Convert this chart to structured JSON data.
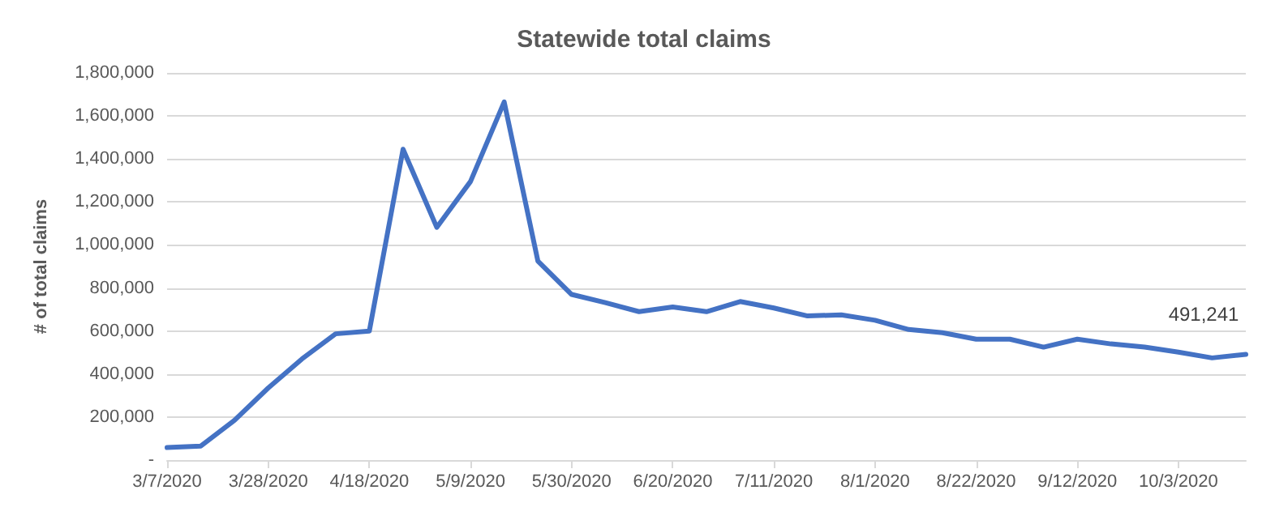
{
  "chart_data": {
    "type": "line",
    "title": "Statewide total claims",
    "ylabel": "# of total claims",
    "x": [
      "2020-03-07",
      "2020-03-14",
      "2020-03-21",
      "2020-03-28",
      "2020-04-04",
      "2020-04-11",
      "2020-04-18",
      "2020-04-25",
      "2020-05-02",
      "2020-05-09",
      "2020-05-16",
      "2020-05-23",
      "2020-05-30",
      "2020-06-06",
      "2020-06-13",
      "2020-06-20",
      "2020-06-27",
      "2020-07-04",
      "2020-07-11",
      "2020-07-18",
      "2020-07-25",
      "2020-08-01",
      "2020-08-08",
      "2020-08-15",
      "2020-08-22",
      "2020-08-29",
      "2020-09-05",
      "2020-09-12",
      "2020-09-19",
      "2020-09-26",
      "2020-10-03",
      "2020-10-10",
      "2020-10-17"
    ],
    "series": [
      {
        "color": "#4472c4",
        "values": [
          58000,
          65000,
          185000,
          335000,
          470000,
          587000,
          600000,
          1445000,
          1082000,
          1295000,
          1665000,
          925000,
          770000,
          732000,
          690000,
          712000,
          690000,
          737000,
          707000,
          670000,
          675000,
          650000,
          607000,
          592000,
          562000,
          562000,
          525000,
          562000,
          540000,
          525000,
          502000,
          475000,
          491241
        ],
        "value_labels": [
          null,
          null,
          null,
          null,
          null,
          null,
          null,
          null,
          null,
          null,
          null,
          null,
          null,
          null,
          null,
          null,
          null,
          null,
          null,
          null,
          null,
          null,
          null,
          null,
          null,
          null,
          null,
          null,
          null,
          null,
          null,
          null,
          "491,241"
        ]
      }
    ],
    "xlim": [
      "2020-03-07",
      "2020-10-17"
    ],
    "xticks": [
      {
        "value": "2020-03-07",
        "label": "3/7/2020"
      },
      {
        "value": "2020-03-28",
        "label": "3/28/2020"
      },
      {
        "value": "2020-04-18",
        "label": "4/18/2020"
      },
      {
        "value": "2020-05-09",
        "label": "5/9/2020"
      },
      {
        "value": "2020-05-30",
        "label": "5/30/2020"
      },
      {
        "value": "2020-06-20",
        "label": "6/20/2020"
      },
      {
        "value": "2020-07-11",
        "label": "7/11/2020"
      },
      {
        "value": "2020-08-01",
        "label": "8/1/2020"
      },
      {
        "value": "2020-08-22",
        "label": "8/22/2020"
      },
      {
        "value": "2020-09-12",
        "label": "9/12/2020"
      },
      {
        "value": "2020-10-03",
        "label": "10/3/2020"
      }
    ],
    "ylim": [
      0,
      1800000
    ],
    "yticks": [
      {
        "value": 0,
        "label": "-"
      },
      {
        "value": 200000,
        "label": "200,000"
      },
      {
        "value": 400000,
        "label": "400,000"
      },
      {
        "value": 600000,
        "label": "600,000"
      },
      {
        "value": 800000,
        "label": "800,000"
      },
      {
        "value": 1000000,
        "label": "1,000,000"
      },
      {
        "value": 1200000,
        "label": "1,200,000"
      },
      {
        "value": 1400000,
        "label": "1,400,000"
      },
      {
        "value": 1600000,
        "label": "1,600,000"
      },
      {
        "value": 1800000,
        "label": "1,800,000"
      }
    ],
    "grid": "y",
    "marker": "none",
    "line_style": "solid"
  }
}
